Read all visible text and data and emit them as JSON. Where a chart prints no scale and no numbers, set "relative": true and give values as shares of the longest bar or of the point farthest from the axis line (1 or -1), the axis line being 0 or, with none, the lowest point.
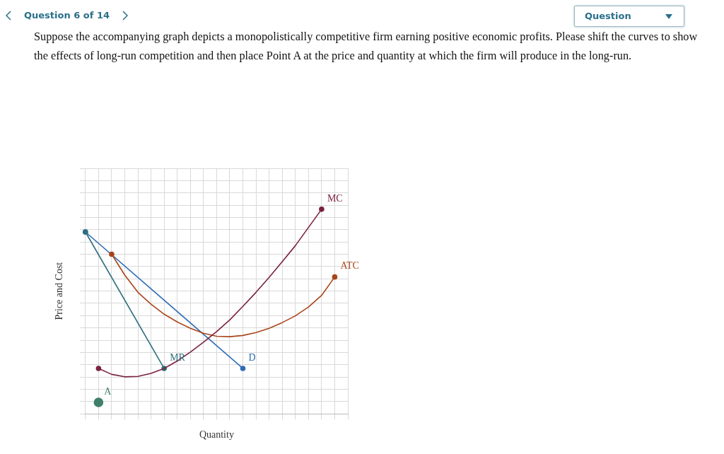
{
  "chart_data": {
    "type": "line",
    "title": "Suppose the accompanying graph depicts a monopolistically competitive firm earning positive economic profits. Please shift the curves to show the effects of long-run competition and then place Point A at the price and quantity at which the firm will produce in the long-run.",
    "annotations": [
      "Question 6 of 14",
      "Question"
    ],
    "xlabel": "Quantity",
    "ylabel": "Price and Cost",
    "relative": true,
    "categories": [
      null,
      null,
      null,
      null,
      null,
      null,
      null,
      null,
      null,
      null,
      null,
      null,
      null,
      null,
      null,
      null,
      null,
      null,
      null,
      null,
      null
    ],
    "tick_labels": false,
    "grid": true,
    "series": [
      {
        "name": "MC",
        "color": "#7b2140",
        "values": [
          null,
          0.222,
          0.193,
          0.181,
          0.183,
          0.198,
          0.222,
          0.258,
          0.302,
          0.35,
          0.402,
          0.459,
          0.525,
          0.594,
          0.667,
          0.744,
          0.822,
          0.911,
          1,
          null,
          null
        ]
      },
      {
        "name": "ATC",
        "color": "#a8461b",
        "values": [
          null,
          null,
          0.78,
          0.678,
          0.594,
          0.536,
          0.487,
          0.449,
          0.418,
          0.394,
          0.379,
          0.377,
          0.383,
          0.397,
          0.418,
          0.446,
          0.479,
          0.522,
          0.579,
          0.669,
          null
        ]
      },
      {
        "name": "MR",
        "color": "#2f6e7c",
        "marker": "circle",
        "values": [
          0.889,
          null,
          null,
          null,
          null,
          null,
          0.222,
          null,
          null,
          null,
          null,
          null,
          null,
          null,
          null,
          null,
          null,
          null,
          null,
          null,
          null
        ]
      },
      {
        "name": "D",
        "color": "#2e6db4",
        "marker": "circle",
        "values": [
          0.889,
          null,
          null,
          null,
          null,
          null,
          null,
          null,
          null,
          null,
          null,
          null,
          0.222,
          null,
          null,
          null,
          null,
          null,
          null,
          null,
          null
        ]
      },
      {
        "name": "A",
        "marker": "circle",
        "color": "#3f7f6a",
        "values": [
          null,
          0.056,
          null,
          null,
          null,
          null,
          null,
          null,
          null,
          null,
          null,
          null,
          null,
          null,
          null,
          null,
          null,
          null,
          null,
          null,
          null
        ]
      }
    ]
  }
}
